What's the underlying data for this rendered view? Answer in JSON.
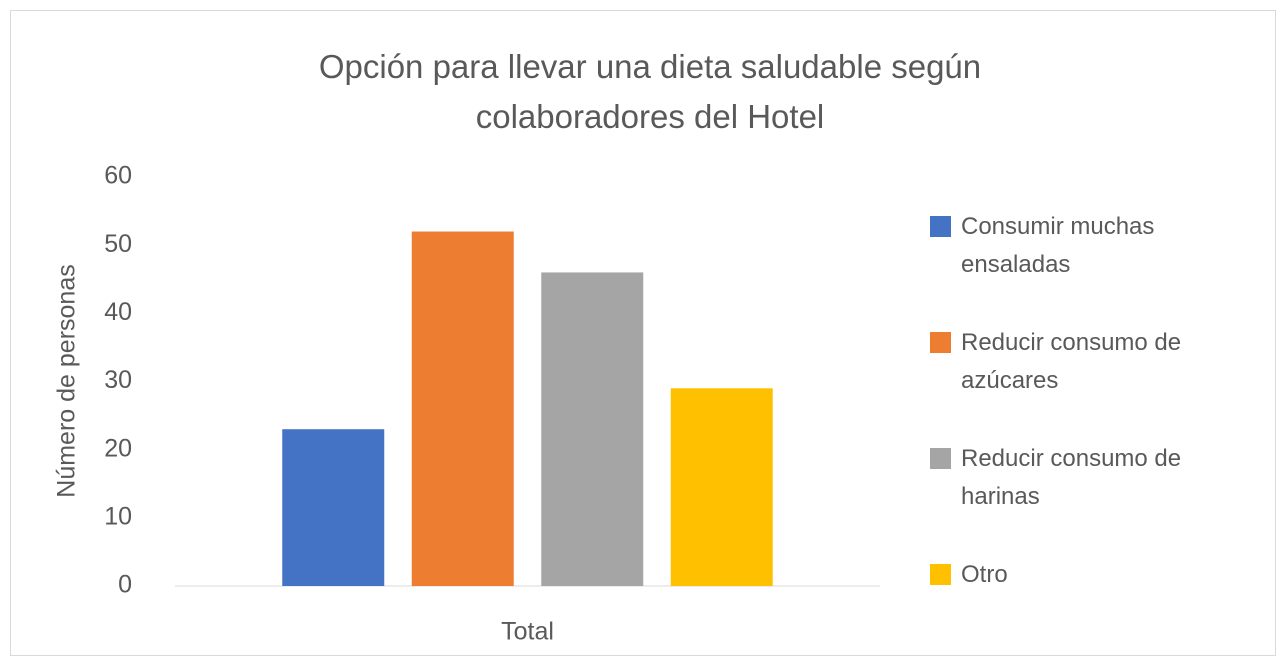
{
  "chart_data": {
    "type": "bar",
    "title": "Opción para llevar una dieta saludable según colaboradores del Hotel",
    "y_label": "Número de personas",
    "categories": [
      "Total"
    ],
    "series": [
      {
        "name": "Consumir muchas ensaladas",
        "color": "#4472c4",
        "values": [
          23
        ]
      },
      {
        "name": "Reducir consumo de azúcares",
        "color": "#ed7d31",
        "values": [
          52
        ]
      },
      {
        "name": "Reducir consumo de harinas",
        "color": "#a5a5a5",
        "values": [
          46
        ]
      },
      {
        "name": "Otro",
        "color": "#ffc000",
        "values": [
          29
        ]
      }
    ],
    "ylim": [
      0,
      60
    ],
    "yticks": [
      0,
      10,
      20,
      30,
      40,
      50,
      60
    ],
    "grid": false,
    "legend": "right"
  }
}
